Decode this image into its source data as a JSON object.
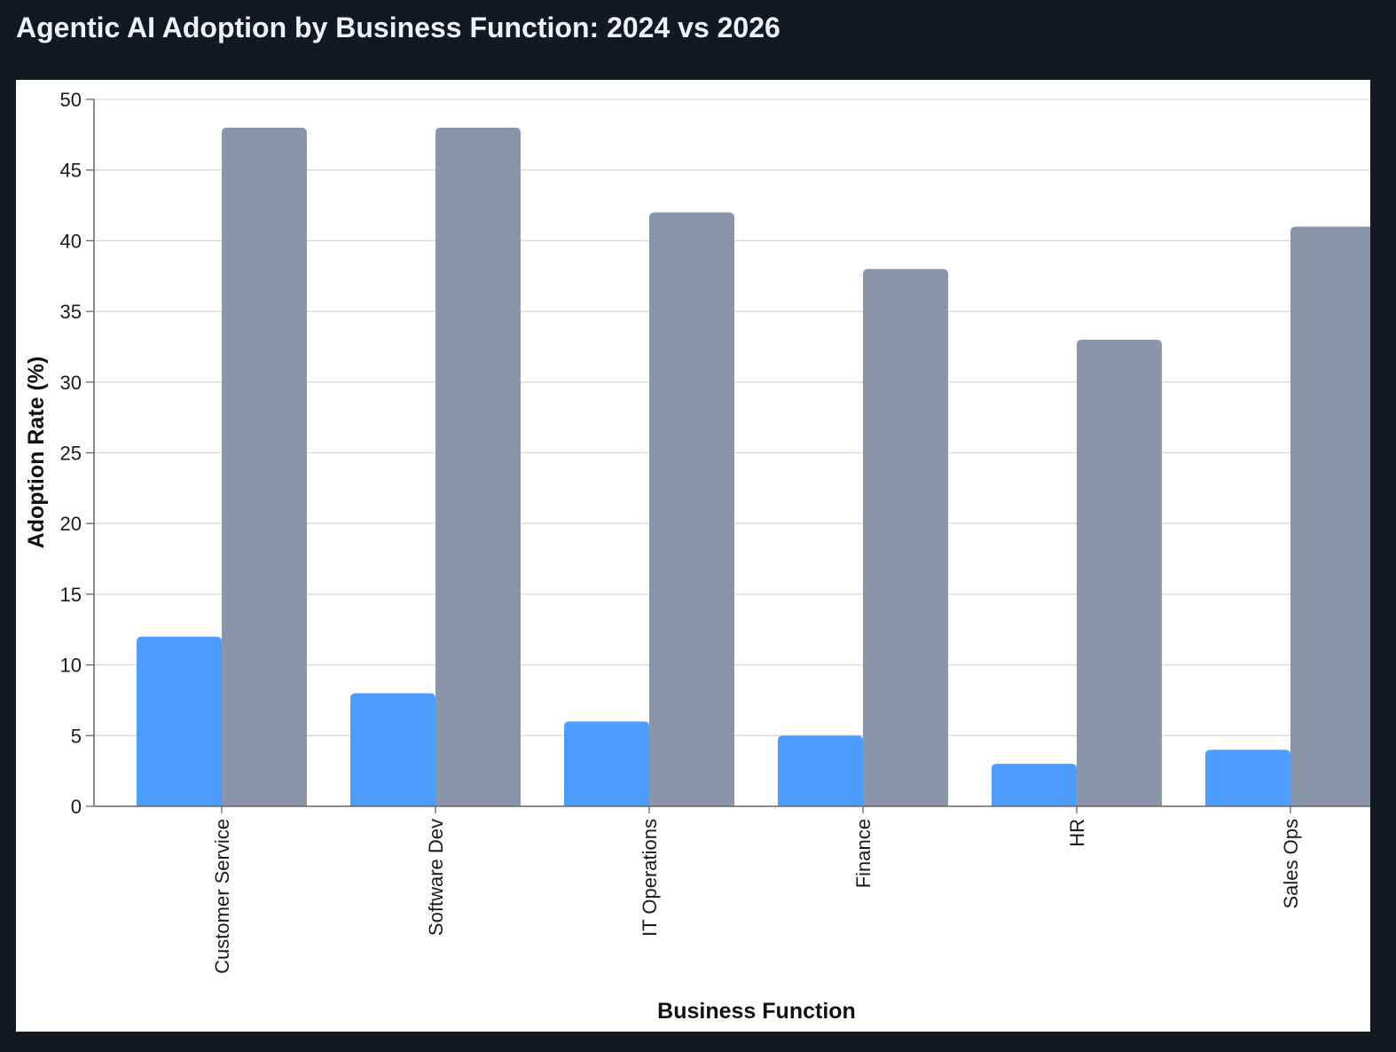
{
  "page": {
    "title": "Agentic AI Adoption by Business Function: 2024 vs 2026"
  },
  "chart_data": {
    "type": "bar",
    "title": "Agentic AI Adoption by Business Function: 2024 vs 2026",
    "xlabel": "Business Function",
    "ylabel": "Adoption Rate (%)",
    "ylim": [
      0,
      50
    ],
    "yticks": [
      0,
      5,
      10,
      15,
      20,
      25,
      30,
      35,
      40,
      45,
      50
    ],
    "grid": true,
    "legend": "none",
    "categories": [
      "Customer Service",
      "Software Dev",
      "IT Operations",
      "Finance",
      "HR",
      "Sales Ops"
    ],
    "series": [
      {
        "values": [
          12,
          8,
          6,
          5,
          3,
          4
        ],
        "color": "#4c9dff"
      },
      {
        "values": [
          48,
          48,
          42,
          38,
          33,
          41
        ],
        "color": "#8b95a9"
      }
    ]
  },
  "colors": {
    "background": "#141821",
    "panel": "#ffffff",
    "gridline": "#d9d9d9",
    "axis": "#666666"
  }
}
